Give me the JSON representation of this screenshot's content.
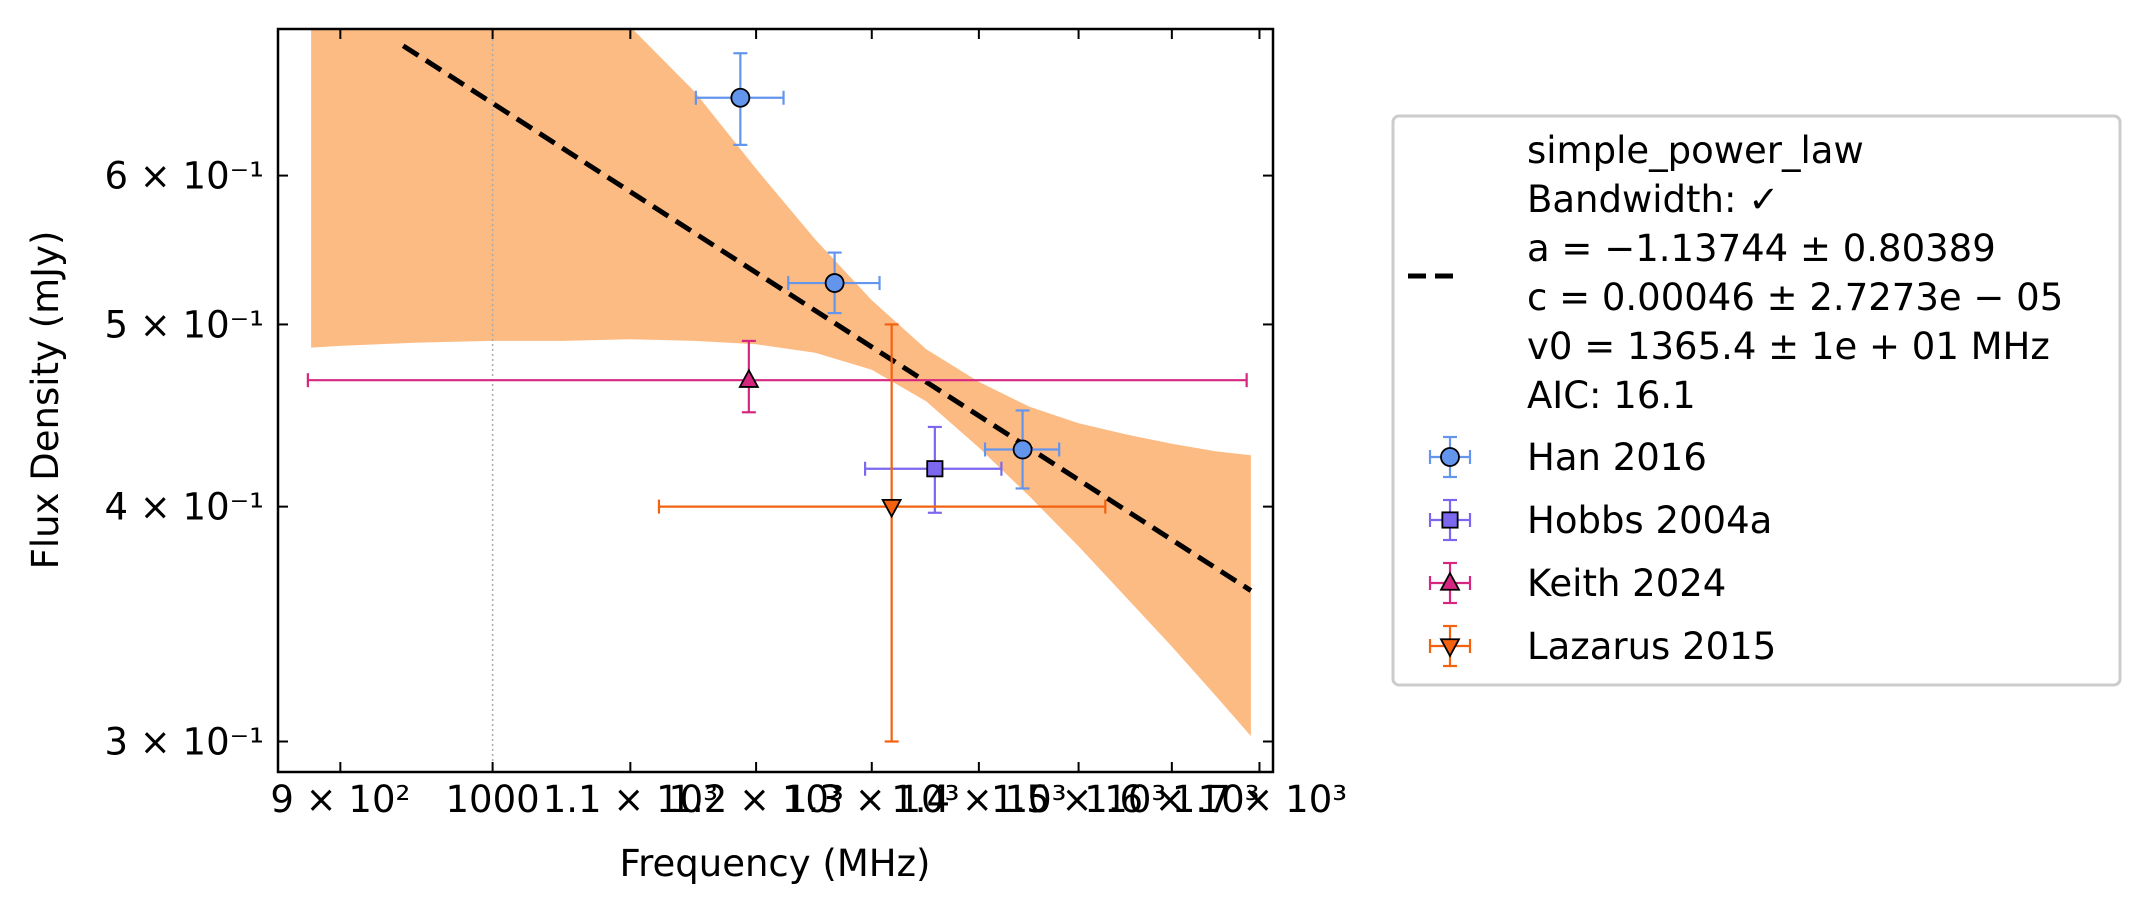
{
  "chart_data": {
    "type": "scatter",
    "xlabel": "Frequency (MHz)",
    "ylabel": "Flux Density (mJy)",
    "x_scale": "log",
    "y_scale": "log",
    "xlim": [
      862,
      1716
    ],
    "ylim": [
      0.289,
      0.718
    ],
    "grid": false,
    "reference_line_x": 1000,
    "x_ticks": [
      {
        "value": 900,
        "label": "9 × 10²"
      },
      {
        "value": 1000,
        "label": "1000"
      },
      {
        "value": 1100,
        "label": "1.1 × 10³"
      },
      {
        "value": 1200,
        "label": "1.2 × 10³"
      },
      {
        "value": 1300,
        "label": "1.3 × 10³"
      },
      {
        "value": 1400,
        "label": "1.4 × 10³"
      },
      {
        "value": 1500,
        "label": "1.5 × 10³"
      },
      {
        "value": 1600,
        "label": "1.6 × 10³"
      },
      {
        "value": 1700,
        "label": "1.7 × 10³"
      }
    ],
    "y_ticks": [
      {
        "value": 0.3,
        "label": "3 × 10⁻¹"
      },
      {
        "value": 0.4,
        "label": "4 × 10⁻¹"
      },
      {
        "value": 0.5,
        "label": "5 × 10⁻¹"
      },
      {
        "value": 0.6,
        "label": "6 × 10⁻¹"
      }
    ],
    "fit": {
      "name_lines": [
        "simple_power_law",
        "Bandwidth: ✓",
        "a = −1.13744 ± 0.80389",
        "c = 0.00046 ± 2.7273e − 05",
        "v0 = 1365.4 ± 1e + 01 MHz",
        "AIC: 16.1"
      ],
      "a": -1.13744,
      "c_mjy": 0.46,
      "v0": 1365.4,
      "x_range": [
        940,
        1690
      ],
      "band": {
        "color": "#fdbb84",
        "x": [
          882,
          900,
          950,
          1000,
          1050,
          1100,
          1150,
          1200,
          1250,
          1300,
          1350,
          1400,
          1450,
          1500,
          1550,
          1600,
          1650,
          1690
        ],
        "upper": [
          0.75,
          0.75,
          0.75,
          0.75,
          0.75,
          0.72,
          0.665,
          0.605,
          0.555,
          0.515,
          0.485,
          0.466,
          0.452,
          0.443,
          0.437,
          0.432,
          0.428,
          0.426
        ],
        "lower": [
          0.486,
          0.487,
          0.489,
          0.49,
          0.49,
          0.491,
          0.49,
          0.488,
          0.483,
          0.473,
          0.455,
          0.43,
          0.405,
          0.381,
          0.358,
          0.337,
          0.317,
          0.302
        ]
      }
    },
    "series": [
      {
        "name": "Han 2016",
        "marker": "circle",
        "color": "#6495ed",
        "points": [
          {
            "x": 1187,
            "y": 0.66,
            "xerr": 36,
            "yerr": [
              0.037,
              0.037
            ]
          },
          {
            "x": 1267,
            "y": 0.526,
            "xerr": 40,
            "yerr": [
              0.019,
              0.02
            ]
          },
          {
            "x": 1443,
            "y": 0.429,
            "xerr": 37,
            "yerr": [
              0.02,
              0.021
            ]
          }
        ]
      },
      {
        "name": "Hobbs 2004a",
        "marker": "square",
        "color": "#7b68ee",
        "points": [
          {
            "x": 1358,
            "y": 0.419,
            "xerr": 64,
            "yerr": [
              0.022,
              0.022
            ]
          }
        ]
      },
      {
        "name": "Keith 2024",
        "marker": "triangle-up",
        "color": "#d62780",
        "points": [
          {
            "x": 1194,
            "y": 0.467,
            "xerr": [
              314,
              491
            ],
            "yerr": [
              0.018,
              0.023
            ]
          }
        ]
      },
      {
        "name": "Lazarus 2015",
        "marker": "triangle-down",
        "color": "#f2620f",
        "points": [
          {
            "x": 1318,
            "y": 0.4,
            "xerr": [
              196,
              210
            ],
            "yerr": [
              0.1,
              0.1
            ]
          }
        ]
      }
    ],
    "legend_position": "outside-right"
  }
}
